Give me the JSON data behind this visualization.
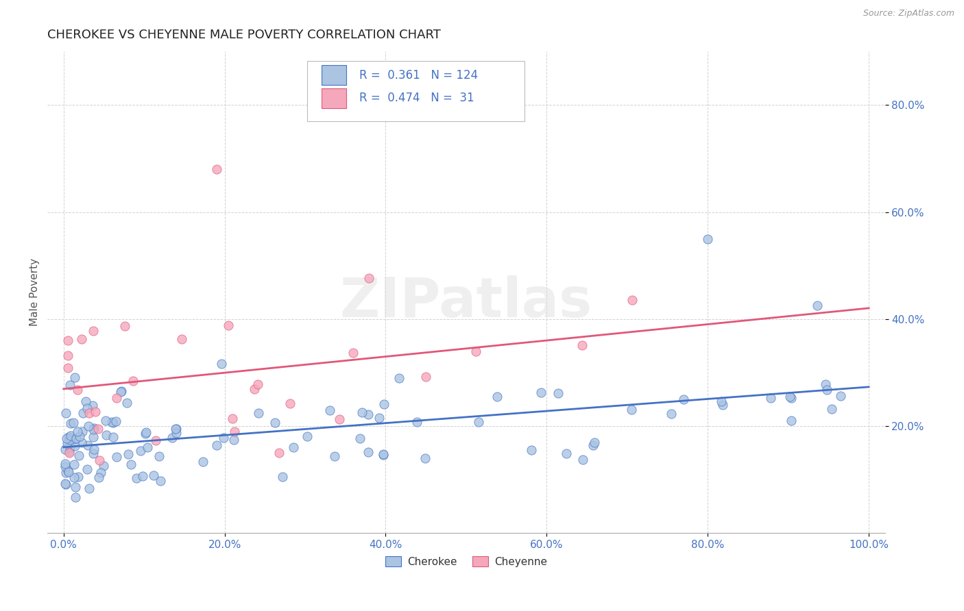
{
  "title": "CHEROKEE VS CHEYENNE MALE POVERTY CORRELATION CHART",
  "source": "Source: ZipAtlas.com",
  "ylabel": "Male Poverty",
  "cherokee_color": "#aac4e2",
  "cheyenne_color": "#f5a8bc",
  "cherokee_line_color": "#4472c4",
  "cheyenne_line_color": "#e05878",
  "r_cherokee": 0.361,
  "n_cherokee": 124,
  "r_cheyenne": 0.474,
  "n_cheyenne": 31,
  "watermark": "ZIPatlas",
  "bg_color": "#ffffff",
  "grid_color": "#cccccc",
  "title_color": "#222222",
  "label_color": "#555555",
  "axis_tick_color": "#4472c4",
  "ytick_vals": [
    20,
    40,
    60,
    80
  ],
  "xtick_vals": [
    0,
    20,
    40,
    60,
    80,
    100
  ],
  "xlim": [
    -2,
    102
  ],
  "ylim": [
    0,
    90
  ]
}
